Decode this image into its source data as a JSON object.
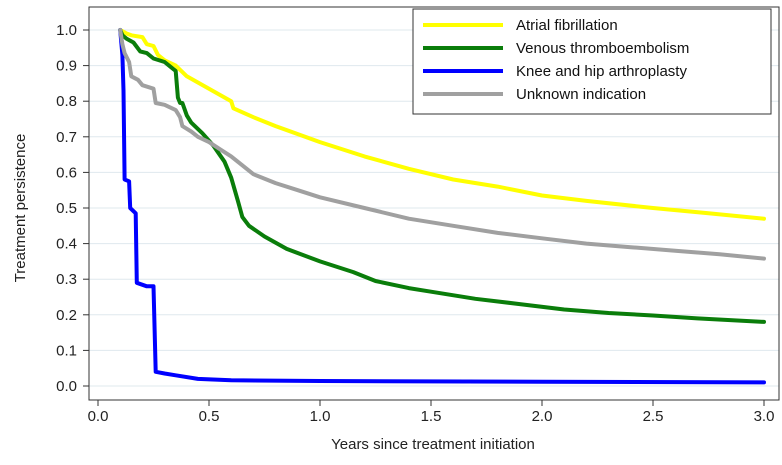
{
  "chart_data": {
    "type": "line",
    "title": "",
    "xlabel": "Years since treatment initiation",
    "ylabel": "Treatment persistence",
    "xlim": [
      0.0,
      3.0
    ],
    "ylim": [
      0.0,
      1.0
    ],
    "x_ticks": [
      "0.0",
      "0.5",
      "1.0",
      "1.5",
      "2.0",
      "2.5",
      "3.0"
    ],
    "y_ticks": [
      "0.0",
      "0.1",
      "0.2",
      "0.3",
      "0.4",
      "0.5",
      "0.6",
      "0.7",
      "0.8",
      "0.9",
      "1.0"
    ],
    "grid": "horizontal",
    "legend_position": "top-right",
    "series": [
      {
        "name": "Atrial fibrillation",
        "color": "#ffff00",
        "points": [
          [
            0.1,
            1.0
          ],
          [
            0.13,
            0.99
          ],
          [
            0.15,
            0.985
          ],
          [
            0.2,
            0.98
          ],
          [
            0.22,
            0.96
          ],
          [
            0.25,
            0.955
          ],
          [
            0.27,
            0.93
          ],
          [
            0.3,
            0.915
          ],
          [
            0.35,
            0.9
          ],
          [
            0.4,
            0.87
          ],
          [
            0.5,
            0.835
          ],
          [
            0.6,
            0.8
          ],
          [
            0.61,
            0.78
          ],
          [
            0.7,
            0.755
          ],
          [
            0.8,
            0.73
          ],
          [
            1.0,
            0.685
          ],
          [
            1.2,
            0.645
          ],
          [
            1.4,
            0.61
          ],
          [
            1.6,
            0.58
          ],
          [
            1.8,
            0.56
          ],
          [
            2.0,
            0.535
          ],
          [
            2.2,
            0.52
          ],
          [
            2.5,
            0.5
          ],
          [
            2.75,
            0.485
          ],
          [
            3.0,
            0.47
          ]
        ]
      },
      {
        "name": "Venous thromboembolism",
        "color": "#0a7d0a",
        "points": [
          [
            0.1,
            1.0
          ],
          [
            0.11,
            0.985
          ],
          [
            0.13,
            0.975
          ],
          [
            0.16,
            0.965
          ],
          [
            0.19,
            0.94
          ],
          [
            0.22,
            0.935
          ],
          [
            0.25,
            0.92
          ],
          [
            0.3,
            0.91
          ],
          [
            0.33,
            0.895
          ],
          [
            0.35,
            0.885
          ],
          [
            0.36,
            0.81
          ],
          [
            0.37,
            0.795
          ],
          [
            0.38,
            0.795
          ],
          [
            0.4,
            0.76
          ],
          [
            0.42,
            0.74
          ],
          [
            0.47,
            0.71
          ],
          [
            0.52,
            0.675
          ],
          [
            0.57,
            0.63
          ],
          [
            0.6,
            0.585
          ],
          [
            0.63,
            0.52
          ],
          [
            0.65,
            0.475
          ],
          [
            0.68,
            0.45
          ],
          [
            0.75,
            0.42
          ],
          [
            0.85,
            0.385
          ],
          [
            1.0,
            0.35
          ],
          [
            1.15,
            0.32
          ],
          [
            1.25,
            0.295
          ],
          [
            1.4,
            0.275
          ],
          [
            1.5,
            0.265
          ],
          [
            1.7,
            0.245
          ],
          [
            1.9,
            0.23
          ],
          [
            2.1,
            0.215
          ],
          [
            2.3,
            0.205
          ],
          [
            2.5,
            0.198
          ],
          [
            2.7,
            0.19
          ],
          [
            3.0,
            0.18
          ]
        ]
      },
      {
        "name": "Knee and hip arthroplasty",
        "color": "#0000ff",
        "points": [
          [
            0.1,
            1.0
          ],
          [
            0.11,
            0.93
          ],
          [
            0.115,
            0.83
          ],
          [
            0.12,
            0.58
          ],
          [
            0.14,
            0.575
          ],
          [
            0.145,
            0.5
          ],
          [
            0.17,
            0.485
          ],
          [
            0.175,
            0.29
          ],
          [
            0.22,
            0.28
          ],
          [
            0.25,
            0.28
          ],
          [
            0.26,
            0.04
          ],
          [
            0.3,
            0.035
          ],
          [
            0.35,
            0.03
          ],
          [
            0.45,
            0.02
          ],
          [
            0.6,
            0.016
          ],
          [
            1.0,
            0.014
          ],
          [
            2.0,
            0.012
          ],
          [
            3.0,
            0.01
          ]
        ]
      },
      {
        "name": "Unknown indication",
        "color": "#a0a0a0",
        "points": [
          [
            0.1,
            1.0
          ],
          [
            0.11,
            0.96
          ],
          [
            0.12,
            0.935
          ],
          [
            0.14,
            0.91
          ],
          [
            0.15,
            0.87
          ],
          [
            0.18,
            0.86
          ],
          [
            0.2,
            0.845
          ],
          [
            0.25,
            0.835
          ],
          [
            0.26,
            0.795
          ],
          [
            0.3,
            0.79
          ],
          [
            0.35,
            0.775
          ],
          [
            0.37,
            0.755
          ],
          [
            0.38,
            0.73
          ],
          [
            0.42,
            0.715
          ],
          [
            0.45,
            0.7
          ],
          [
            0.5,
            0.685
          ],
          [
            0.55,
            0.665
          ],
          [
            0.6,
            0.645
          ],
          [
            0.65,
            0.62
          ],
          [
            0.7,
            0.595
          ],
          [
            0.8,
            0.57
          ],
          [
            0.9,
            0.55
          ],
          [
            1.0,
            0.53
          ],
          [
            1.2,
            0.5
          ],
          [
            1.4,
            0.47
          ],
          [
            1.6,
            0.45
          ],
          [
            1.8,
            0.43
          ],
          [
            2.0,
            0.415
          ],
          [
            2.2,
            0.4
          ],
          [
            2.4,
            0.39
          ],
          [
            2.6,
            0.38
          ],
          [
            2.8,
            0.37
          ],
          [
            3.0,
            0.358
          ]
        ]
      }
    ]
  }
}
